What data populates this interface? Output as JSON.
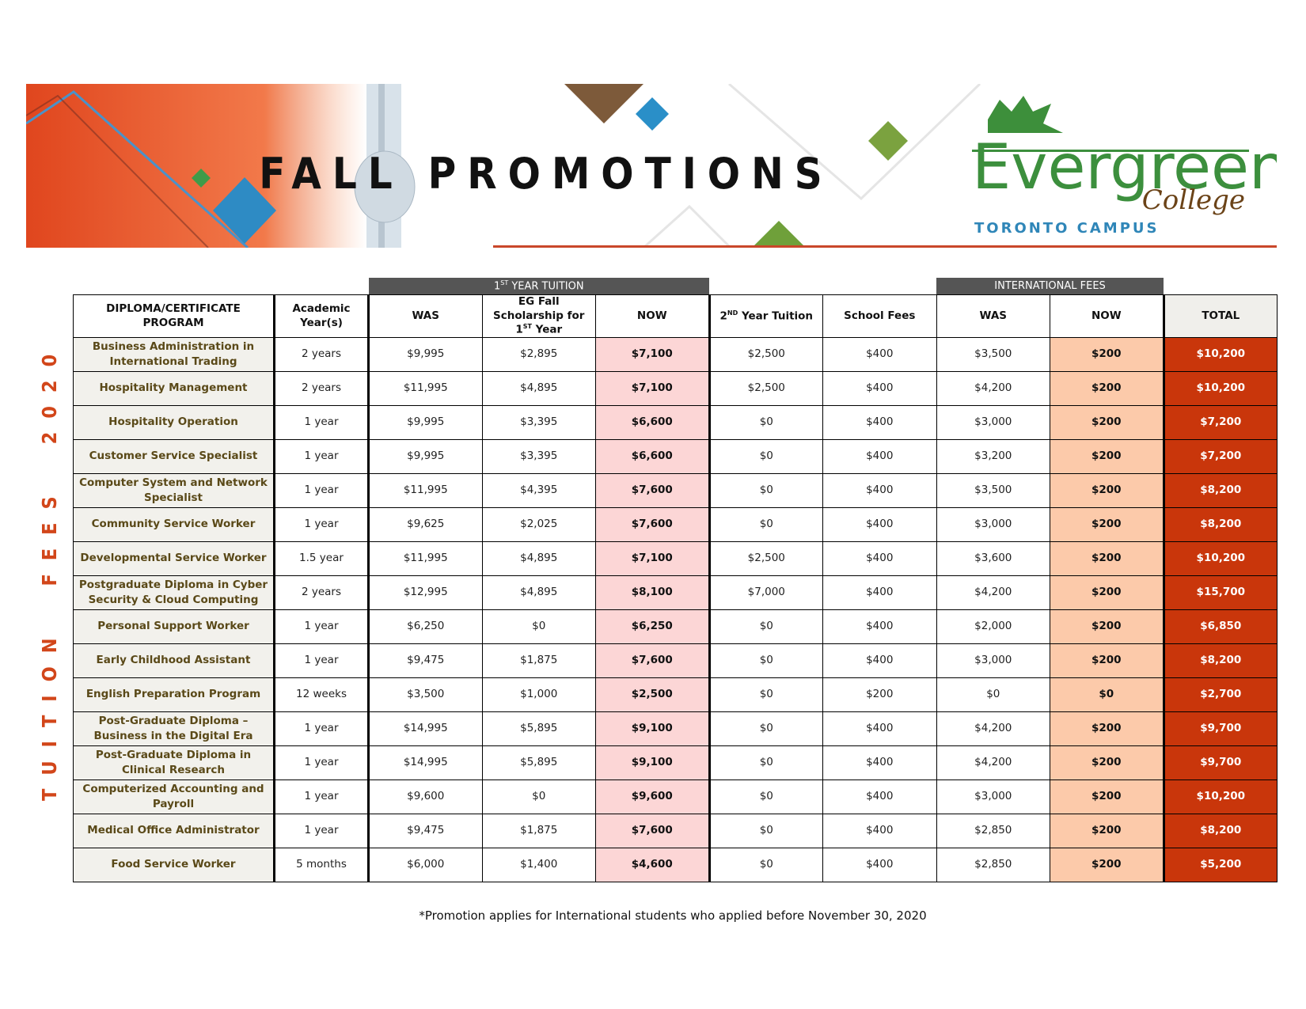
{
  "header": {
    "title": "FALL PROMOTIONS",
    "logo": {
      "name": "Evergreen",
      "sub": "College",
      "campus": "TORONTO CAMPUS"
    }
  },
  "side_label": "TUITION FEES 2020",
  "table": {
    "groups": [
      [
        "1",
        "ST",
        " YEAR TUITION"
      ],
      "INTERNATIONAL FEES"
    ],
    "columns": [
      "DIPLOMA/CERTIFICATE PROGRAM",
      "Academic Year(s)",
      "WAS",
      [
        "EG Fall Scholarship for 1",
        "ST",
        " Year"
      ],
      "NOW",
      [
        "2",
        "ND",
        " Year Tuition"
      ],
      "School Fees",
      "WAS",
      "NOW",
      "TOTAL"
    ],
    "rows": [
      [
        "Business Administration in International Trading",
        "2 years",
        "$9,995",
        "$2,895",
        "$7,100",
        "$2,500",
        "$400",
        "$3,500",
        "$200",
        "$10,200"
      ],
      [
        "Hospitality Management",
        "2 years",
        "$11,995",
        "$4,895",
        "$7,100",
        "$2,500",
        "$400",
        "$4,200",
        "$200",
        "$10,200"
      ],
      [
        "Hospitality Operation",
        "1 year",
        "$9,995",
        "$3,395",
        "$6,600",
        "$0",
        "$400",
        "$3,000",
        "$200",
        "$7,200"
      ],
      [
        "Customer Service Specialist",
        "1 year",
        "$9,995",
        "$3,395",
        "$6,600",
        "$0",
        "$400",
        "$3,200",
        "$200",
        "$7,200"
      ],
      [
        "Computer System and Network Specialist",
        "1 year",
        "$11,995",
        "$4,395",
        "$7,600",
        "$0",
        "$400",
        "$3,500",
        "$200",
        "$8,200"
      ],
      [
        "Community Service Worker",
        "1 year",
        "$9,625",
        "$2,025",
        "$7,600",
        "$0",
        "$400",
        "$3,000",
        "$200",
        "$8,200"
      ],
      [
        "Developmental Service Worker",
        "1.5 year",
        "$11,995",
        "$4,895",
        "$7,100",
        "$2,500",
        "$400",
        "$3,600",
        "$200",
        "$10,200"
      ],
      [
        "Postgraduate Diploma in Cyber Security & Cloud Computing",
        "2 years",
        "$12,995",
        "$4,895",
        "$8,100",
        "$7,000",
        "$400",
        "$4,200",
        "$200",
        "$15,700"
      ],
      [
        "Personal Support Worker",
        "1 year",
        "$6,250",
        "$0",
        "$6,250",
        "$0",
        "$400",
        "$2,000",
        "$200",
        "$6,850"
      ],
      [
        "Early Childhood Assistant",
        "1 year",
        "$9,475",
        "$1,875",
        "$7,600",
        "$0",
        "$400",
        "$3,000",
        "$200",
        "$8,200"
      ],
      [
        "English Preparation Program",
        "12 weeks",
        "$3,500",
        "$1,000",
        "$2,500",
        "$0",
        "$200",
        "$0",
        "$0",
        "$2,700"
      ],
      [
        "Post-Graduate Diploma – Business in the Digital Era",
        "1 year",
        "$14,995",
        "$5,895",
        "$9,100",
        "$0",
        "$400",
        "$4,200",
        "$200",
        "$9,700"
      ],
      [
        "Post-Graduate Diploma in Clinical Research",
        "1 year",
        "$14,995",
        "$5,895",
        "$9,100",
        "$0",
        "$400",
        "$4,200",
        "$200",
        "$9,700"
      ],
      [
        "Computerized Accounting and Payroll",
        "1 year",
        "$9,600",
        "$0",
        "$9,600",
        "$0",
        "$400",
        "$3,000",
        "$200",
        "$10,200"
      ],
      [
        "Medical Office Administrator",
        "1 year",
        "$9,475",
        "$1,875",
        "$7,600",
        "$0",
        "$400",
        "$2,850",
        "$200",
        "$8,200"
      ],
      [
        "Food Service Worker",
        "5 months",
        "$6,000",
        "$1,400",
        "$4,600",
        "$0",
        "$400",
        "$2,850",
        "$200",
        "$5,200"
      ]
    ]
  },
  "footnote": "*Promotion applies for International students who applied before November 30, 2020"
}
